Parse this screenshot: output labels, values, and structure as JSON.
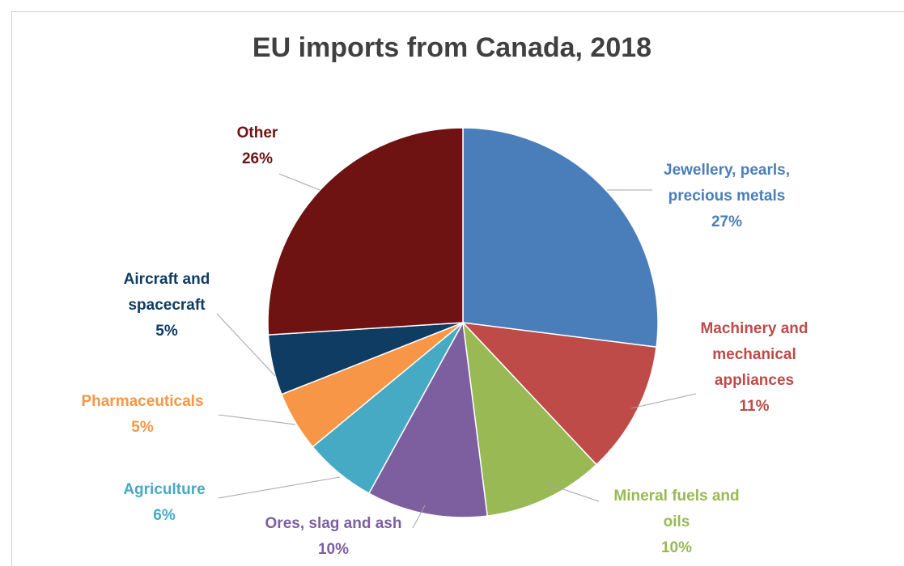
{
  "chart_data": {
    "type": "pie",
    "title": "EU imports from Canada, 2018",
    "slices": [
      {
        "name": "Jewellery, pearls, precious metals",
        "label_lines": [
          "Jewellery, pearls,",
          "precious metals"
        ],
        "value": 27,
        "value_label": "27%",
        "color": "#4a7ebb"
      },
      {
        "name": "Machinery and mechanical appliances",
        "label_lines": [
          "Machinery and",
          "mechanical",
          "appliances"
        ],
        "value": 11,
        "value_label": "11%",
        "color": "#be4b48"
      },
      {
        "name": "Mineral fuels and oils",
        "label_lines": [
          "Mineral fuels and",
          "oils"
        ],
        "value": 10,
        "value_label": "10%",
        "color": "#98b954"
      },
      {
        "name": "Ores, slag and ash",
        "label_lines": [
          "Ores, slag and ash"
        ],
        "value": 10,
        "value_label": "10%",
        "color": "#7d5fa0"
      },
      {
        "name": "Agriculture",
        "label_lines": [
          "Agriculture"
        ],
        "value": 6,
        "value_label": "6%",
        "color": "#46aac5"
      },
      {
        "name": "Pharmaceuticals",
        "label_lines": [
          "Pharmaceuticals"
        ],
        "value": 5,
        "value_label": "5%",
        "color": "#f79646"
      },
      {
        "name": "Aircraft and spacecraft",
        "label_lines": [
          "Aircraft and",
          "spacecraft"
        ],
        "value": 5,
        "value_label": "5%",
        "color": "#0e3c63"
      },
      {
        "name": "Other",
        "label_lines": [
          "Other"
        ],
        "value": 26,
        "value_label": "26%",
        "color": "#6e1212"
      }
    ],
    "start": "12 o'clock",
    "direction": "clockwise",
    "legend": "none",
    "data_labels": "outside with leader lines"
  }
}
